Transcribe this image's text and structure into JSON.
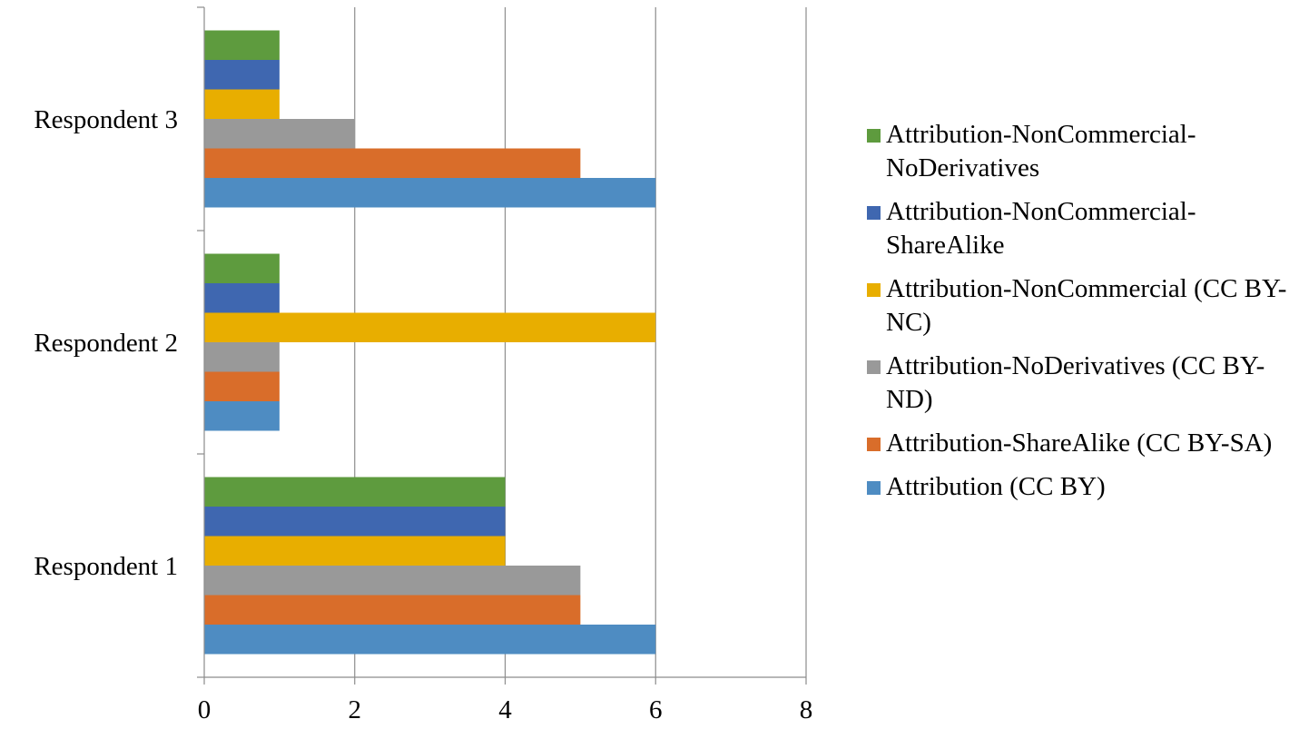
{
  "chart_data": {
    "type": "bar",
    "orientation": "horizontal",
    "title": "",
    "xlabel": "",
    "ylabel": "",
    "categories": [
      "Respondent 1",
      "Respondent 2",
      "Respondent 3"
    ],
    "series": [
      {
        "name": "Attribution (CC BY)",
        "color": "#4E8CC2",
        "values": [
          6,
          1,
          6
        ]
      },
      {
        "name": "Attribution-ShareAlike (CC BY-SA)",
        "color": "#D96D2A",
        "values": [
          5,
          1,
          5
        ]
      },
      {
        "name": "Attribution-NoDerivatives (CC BY-ND)",
        "color": "#999999",
        "values": [
          5,
          1,
          2
        ]
      },
      {
        "name": "Attribution-NonCommercial (CC BY-NC)",
        "color": "#E8AE00",
        "values": [
          4,
          6,
          1
        ]
      },
      {
        "name": "Attribution-NonCommercial-ShareAlike",
        "color": "#3F67B0",
        "values": [
          4,
          1,
          1
        ]
      },
      {
        "name": "Attribution-NonCommercial-NoDerivatives",
        "color": "#5E9B3E",
        "values": [
          4,
          1,
          1
        ]
      }
    ],
    "xlim": [
      0,
      8
    ],
    "xticks": [
      "0",
      "2",
      "4",
      "6",
      "8"
    ],
    "grid": true,
    "legend_position": "right",
    "legend_order": "reversed"
  }
}
